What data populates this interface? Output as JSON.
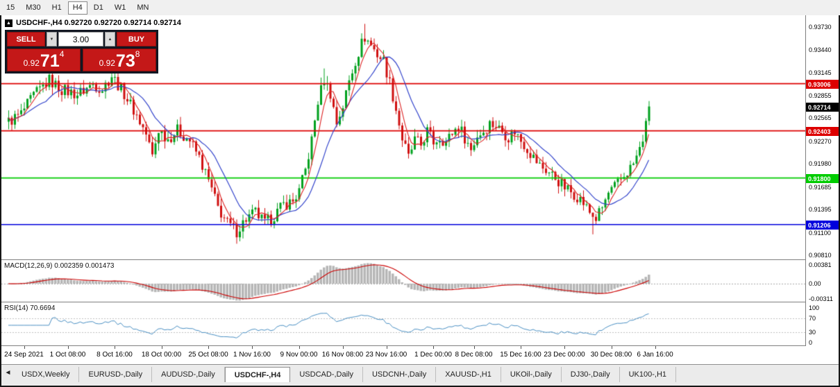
{
  "toolbar": {
    "timeframes": [
      "15",
      "M30",
      "H1",
      "H4",
      "D1",
      "W1",
      "MN"
    ],
    "active": "H4"
  },
  "icons": {
    "collapse": "▲",
    "tab_scroll_left": "◄",
    "volume_down": "▼",
    "volume_up": "▲"
  },
  "chart": {
    "title_line": "USDCHF-,H4 0.92720 0.92720 0.92714 0.92714"
  },
  "trade_panel": {
    "sell_label": "SELL",
    "buy_label": "BUY",
    "volume": "3.00",
    "sell_price": {
      "prefix": "0.92",
      "big": "71",
      "sup": "4"
    },
    "buy_price": {
      "prefix": "0.92",
      "big": "73",
      "sup": "8"
    }
  },
  "chart_data": {
    "type": "candlestick",
    "symbol": "USDCHF-",
    "timeframe": "H4",
    "last_quote": {
      "open": "0.92720",
      "high": "0.92720",
      "low": "0.92714",
      "close": "0.92714"
    },
    "up_color": "#00a11e",
    "down_color": "#d01010",
    "price_axis": {
      "min": 0.9076,
      "max": 0.9388,
      "ticks": [
        {
          "v": 0.9373,
          "text": "0.93730"
        },
        {
          "v": 0.9344,
          "text": "0.93440"
        },
        {
          "v": 0.93145,
          "text": "0.93145"
        },
        {
          "v": 0.92855,
          "text": "0.92855"
        },
        {
          "v": 0.92565,
          "text": "0.92565"
        },
        {
          "v": 0.9227,
          "text": "0.92270"
        },
        {
          "v": 0.9198,
          "text": "0.91980"
        },
        {
          "v": 0.91685,
          "text": "0.91685"
        },
        {
          "v": 0.91395,
          "text": "0.91395"
        },
        {
          "v": 0.911,
          "text": "0.91100"
        },
        {
          "v": 0.9081,
          "text": "0.90810"
        }
      ]
    },
    "hlines": [
      {
        "price": 0.93006,
        "label": "0.93006",
        "color": "#dd0000"
      },
      {
        "price": 0.92403,
        "label": "0.92403",
        "color": "#dd0000"
      },
      {
        "price": 0.918,
        "label": "0.91800",
        "color": "#00cc00"
      },
      {
        "price": 0.91206,
        "label": "0.91206",
        "color": "#0000dd"
      }
    ],
    "current_price": {
      "value": 0.92714,
      "label": "0.92714",
      "bg": "#000000"
    },
    "candle_count": 206,
    "price_path": [
      [
        0,
        0.9252
      ],
      [
        4,
        0.9262
      ],
      [
        8,
        0.9285
      ],
      [
        13,
        0.9305
      ],
      [
        17,
        0.9293
      ],
      [
        22,
        0.9287
      ],
      [
        27,
        0.93
      ],
      [
        30,
        0.9294
      ],
      [
        33,
        0.9311
      ],
      [
        37,
        0.9288
      ],
      [
        41,
        0.926
      ],
      [
        44,
        0.9236
      ],
      [
        46,
        0.9208
      ],
      [
        48,
        0.9242
      ],
      [
        51,
        0.923
      ],
      [
        54,
        0.9241
      ],
      [
        58,
        0.9228
      ],
      [
        61,
        0.9206
      ],
      [
        64,
        0.9176
      ],
      [
        67,
        0.9142
      ],
      [
        70,
        0.9122
      ],
      [
        73,
        0.9112
      ],
      [
        76,
        0.9128
      ],
      [
        79,
        0.9136
      ],
      [
        82,
        0.9122
      ],
      [
        85,
        0.9132
      ],
      [
        88,
        0.9146
      ],
      [
        91,
        0.915
      ],
      [
        93,
        0.9163
      ],
      [
        95,
        0.919
      ],
      [
        97,
        0.9228
      ],
      [
        99,
        0.9278
      ],
      [
        101,
        0.9306
      ],
      [
        103,
        0.9288
      ],
      [
        105,
        0.925
      ],
      [
        107,
        0.9272
      ],
      [
        109,
        0.9304
      ],
      [
        111,
        0.933
      ],
      [
        113,
        0.9352
      ],
      [
        114,
        0.936
      ],
      [
        116,
        0.935
      ],
      [
        118,
        0.9338
      ],
      [
        120,
        0.933
      ],
      [
        122,
        0.9302
      ],
      [
        124,
        0.9268
      ],
      [
        126,
        0.923
      ],
      [
        128,
        0.9206
      ],
      [
        130,
        0.9228
      ],
      [
        132,
        0.9222
      ],
      [
        134,
        0.924
      ],
      [
        136,
        0.9226
      ],
      [
        138,
        0.9232
      ],
      [
        140,
        0.9226
      ],
      [
        142,
        0.9238
      ],
      [
        144,
        0.9247
      ],
      [
        146,
        0.9232
      ],
      [
        148,
        0.9216
      ],
      [
        150,
        0.9234
      ],
      [
        152,
        0.924
      ],
      [
        154,
        0.925
      ],
      [
        156,
        0.9247
      ],
      [
        158,
        0.924
      ],
      [
        160,
        0.9232
      ],
      [
        162,
        0.924
      ],
      [
        164,
        0.9228
      ],
      [
        166,
        0.9218
      ],
      [
        168,
        0.9206
      ],
      [
        170,
        0.9196
      ],
      [
        172,
        0.919
      ],
      [
        174,
        0.9184
      ],
      [
        176,
        0.9176
      ],
      [
        178,
        0.9168
      ],
      [
        180,
        0.9162
      ],
      [
        182,
        0.9157
      ],
      [
        184,
        0.9148
      ],
      [
        186,
        0.9136
      ],
      [
        188,
        0.9128
      ],
      [
        190,
        0.9142
      ],
      [
        192,
        0.916
      ],
      [
        194,
        0.9168
      ],
      [
        196,
        0.9178
      ],
      [
        198,
        0.9188
      ],
      [
        200,
        0.9198
      ],
      [
        202,
        0.9216
      ],
      [
        204,
        0.9246
      ],
      [
        205,
        0.9271
      ]
    ],
    "spikes": {
      "13": {
        "high": 0.9313
      },
      "33": {
        "high": 0.9318
      },
      "73": {
        "low": 0.9096
      },
      "101": {
        "high": 0.932
      },
      "114": {
        "high": 0.9377
      },
      "187": {
        "low": 0.9108
      }
    },
    "ma_fast": {
      "period": 5,
      "color": "#dd2222"
    },
    "ma_slow": {
      "period": 13,
      "color": "#3344cc"
    },
    "x_labels": [
      {
        "text": "24 Sep 2021",
        "i": 5
      },
      {
        "text": "1 Oct 08:00",
        "i": 19
      },
      {
        "text": "8 Oct 16:00",
        "i": 34
      },
      {
        "text": "18 Oct 00:00",
        "i": 49
      },
      {
        "text": "25 Oct 08:00",
        "i": 64
      },
      {
        "text": "1 Nov 16:00",
        "i": 78
      },
      {
        "text": "9 Nov 00:00",
        "i": 93
      },
      {
        "text": "16 Nov 08:00",
        "i": 107
      },
      {
        "text": "23 Nov 16:00",
        "i": 121
      },
      {
        "text": "1 Dec 00:00",
        "i": 136
      },
      {
        "text": "8 Dec 08:00",
        "i": 149
      },
      {
        "text": "15 Dec 16:00",
        "i": 164
      },
      {
        "text": "23 Dec 00:00",
        "i": 178
      },
      {
        "text": "30 Dec 08:00",
        "i": 193
      },
      {
        "text": "6 Jan 16:00",
        "i": 207
      }
    ],
    "indicators": {
      "macd": {
        "label": "MACD(12,26,9) 0.002359 0.001473",
        "fast": 12,
        "slow": 26,
        "signal": 9,
        "values": {
          "main": 0.002359,
          "signal": 0.001473
        },
        "axis_ticks": [
          {
            "v": 0.00381,
            "text": "0.00381"
          },
          {
            "v": 0,
            "text": "0.00"
          },
          {
            "v": -0.00311,
            "text": "-0.00311"
          }
        ],
        "hist_color": "#b6b6b6",
        "signal_color": "#cc0000"
      },
      "rsi": {
        "label": "RSI(14) 70.6694",
        "period": 14,
        "value": 70.6694,
        "axis_ticks": [
          {
            "v": 100,
            "text": "100"
          },
          {
            "v": 70,
            "text": "70"
          },
          {
            "v": 30,
            "text": "30"
          },
          {
            "v": 0,
            "text": "0"
          }
        ],
        "levels": [
          70,
          30
        ],
        "line_color": "#4a90c4",
        "level_color": "#c0c0c0"
      }
    }
  },
  "tabs": {
    "active_index": 3,
    "items": [
      "USDX,Weekly",
      "EURUSD-,Daily",
      "AUDUSD-,Daily",
      "USDCHF-,H4",
      "USDCAD-,Daily",
      "USDCNH-,Daily",
      "XAUUSD-,H1",
      "UKOil-,Daily",
      "DJ30-,Daily",
      "UK100-,H1"
    ]
  }
}
